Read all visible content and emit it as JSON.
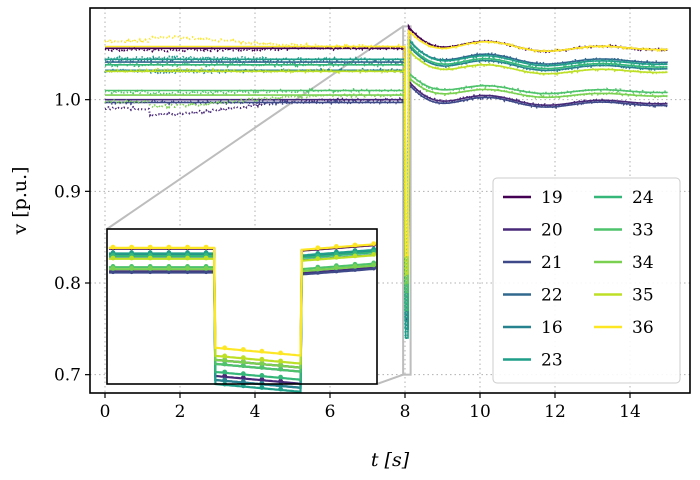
{
  "chart_data": {
    "type": "line",
    "xlabel": "t [s]",
    "ylabel": "v [p.u.]",
    "xlim": [
      -0.4,
      15.6
    ],
    "ylim": [
      0.68,
      1.1
    ],
    "x_ticks": [
      0,
      2,
      4,
      6,
      8,
      10,
      12,
      14
    ],
    "y_ticks": [
      0.7,
      0.8,
      0.9,
      1.0
    ],
    "x_tick_labels": [
      "0",
      "2",
      "4",
      "6",
      "8",
      "10",
      "12",
      "14"
    ],
    "y_tick_labels": [
      "0.7",
      "0.8",
      "0.9",
      "1.0"
    ],
    "grid": true,
    "legend_position": "lower-right",
    "legend_columns": 2,
    "fault_start": 8.0,
    "fault_end": 8.08,
    "inset_zoom": {
      "x_range": [
        7.95,
        8.15
      ],
      "y_range": [
        0.7,
        1.08
      ]
    },
    "series": [
      {
        "name": "19",
        "color": "#440154",
        "v_pre": 1.056,
        "v_fault": 0.8,
        "v_peak": 1.08,
        "v_final": 1.056,
        "osc_amp": 0.01,
        "measured_offset": -0.002
      },
      {
        "name": "20",
        "color": "#482878",
        "v_pre": 1.0,
        "v_fault": 0.76,
        "v_peak": 1.021,
        "v_final": 0.997,
        "osc_amp": 0.01,
        "measured_offset": -0.016
      },
      {
        "name": "21",
        "color": "#3e4989",
        "v_pre": 0.997,
        "v_fault": 0.75,
        "v_peak": 1.018,
        "v_final": 0.995,
        "osc_amp": 0.01,
        "measured_offset": 0.0
      },
      {
        "name": "22",
        "color": "#31688e",
        "v_pre": 1.041,
        "v_fault": 0.79,
        "v_peak": 1.066,
        "v_final": 1.042,
        "osc_amp": 0.01,
        "measured_offset": 0.003
      },
      {
        "name": "16",
        "color": "#26828e",
        "v_pre": 1.032,
        "v_fault": 0.75,
        "v_peak": 1.06,
        "v_final": 1.035,
        "osc_amp": 0.01,
        "measured_offset": -0.002
      },
      {
        "name": "23",
        "color": "#1f9e89",
        "v_pre": 1.044,
        "v_fault": 0.74,
        "v_peak": 1.067,
        "v_final": 1.04,
        "osc_amp": 0.01,
        "measured_offset": 0.002
      },
      {
        "name": "24",
        "color": "#35b779",
        "v_pre": 1.038,
        "v_fault": 0.77,
        "v_peak": 1.062,
        "v_final": 1.037,
        "osc_amp": 0.01,
        "measured_offset": 0.0
      },
      {
        "name": "33",
        "color": "#4ec36b",
        "v_pre": 1.01,
        "v_fault": 0.79,
        "v_peak": 1.03,
        "v_final": 1.009,
        "osc_amp": 0.008,
        "measured_offset": -0.003
      },
      {
        "name": "34",
        "color": "#7ad151",
        "v_pre": 1.005,
        "v_fault": 0.8,
        "v_peak": 1.025,
        "v_final": 1.005,
        "osc_amp": 0.008,
        "measured_offset": -0.012
      },
      {
        "name": "35",
        "color": "#bddf26",
        "v_pre": 1.031,
        "v_fault": 0.81,
        "v_peak": 1.055,
        "v_final": 1.031,
        "osc_amp": 0.009,
        "measured_offset": 0.001
      },
      {
        "name": "36",
        "color": "#fde725",
        "v_pre": 1.058,
        "v_fault": 0.83,
        "v_peak": 1.076,
        "v_final": 1.056,
        "osc_amp": 0.01,
        "measured_offset": 0.01
      }
    ]
  }
}
